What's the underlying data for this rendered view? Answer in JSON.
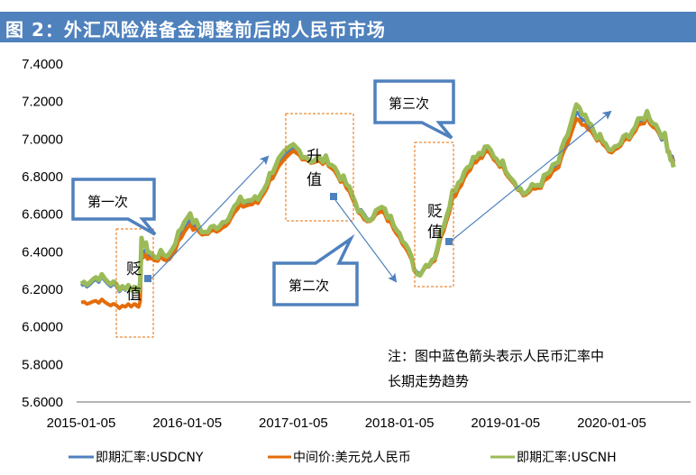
{
  "title": "图 2：外汇风险准备金调整前后的人民币市场",
  "colors": {
    "title_bg": "#4f81bd",
    "usdcny": "#4f81bd",
    "central_parity": "#e46c0a",
    "usdcnh": "#9bbb59",
    "axis": "#868686",
    "callout_border": "#4f81bd",
    "box_border": "#e46c0a",
    "trend_arrow": "#4f81bd"
  },
  "legend": {
    "items": [
      {
        "label": "即期汇率:USDCNY",
        "color": "#4f81bd"
      },
      {
        "label": "中间价:美元兑人民币",
        "color": "#e46c0a"
      },
      {
        "label": "即期汇率:USCNH",
        "color": "#9bbb59"
      }
    ]
  },
  "annotations": {
    "callouts": [
      {
        "label": "第一次"
      },
      {
        "label": "第二次"
      },
      {
        "label": "第三次"
      }
    ],
    "boxes": [
      {
        "line1": "贬",
        "line2": "值"
      },
      {
        "line1": "升",
        "line2": "值"
      },
      {
        "line1": "贬",
        "line2": "值"
      }
    ],
    "note_line1": "注：图中蓝色箭头表示人民币汇率中",
    "note_line2": "长期走势趋势"
  },
  "chart_data": {
    "type": "line",
    "title": "图 2：外汇风险准备金调整前后的人民币市场",
    "xlabel": "",
    "ylabel": "",
    "ylim": [
      5.6,
      7.4
    ],
    "yticks": [
      "7.4000",
      "7.2000",
      "7.0000",
      "6.8000",
      "6.6000",
      "6.4000",
      "6.2000",
      "6.0000",
      "5.8000",
      "5.6000"
    ],
    "xticks": [
      "2015-01-05",
      "2016-01-05",
      "2017-01-05",
      "2018-01-05",
      "2019-01-05",
      "2020-01-05"
    ],
    "grid": false,
    "legend_position": "bottom",
    "x": [
      "2015-01",
      "2015-03",
      "2015-05",
      "2015-07",
      "2015-08",
      "2015-09",
      "2015-11",
      "2016-01",
      "2016-03",
      "2016-05",
      "2016-07",
      "2016-09",
      "2016-11",
      "2017-01",
      "2017-03",
      "2017-05",
      "2017-07",
      "2017-09",
      "2017-11",
      "2018-01",
      "2018-03",
      "2018-05",
      "2018-07",
      "2018-09",
      "2018-11",
      "2019-01",
      "2019-03",
      "2019-05",
      "2019-07",
      "2019-09",
      "2019-11",
      "2020-01",
      "2020-03",
      "2020-05",
      "2020-07",
      "2020-08"
    ],
    "series": [
      {
        "name": "即期汇率:USDCNY",
        "values": [
          6.22,
          6.26,
          6.21,
          6.21,
          6.4,
          6.37,
          6.37,
          6.56,
          6.5,
          6.55,
          6.66,
          6.67,
          6.85,
          6.94,
          6.89,
          6.88,
          6.75,
          6.58,
          6.62,
          6.5,
          6.29,
          6.37,
          6.7,
          6.86,
          6.94,
          6.84,
          6.71,
          6.76,
          6.86,
          7.13,
          7.03,
          6.93,
          7.02,
          7.12,
          7.0,
          6.88
        ]
      },
      {
        "name": "中间价:美元兑人民币",
        "values": [
          6.13,
          6.14,
          6.11,
          6.12,
          6.38,
          6.36,
          6.36,
          6.54,
          6.49,
          6.53,
          6.64,
          6.66,
          6.83,
          6.93,
          6.88,
          6.87,
          6.74,
          6.56,
          6.61,
          6.49,
          6.28,
          6.36,
          6.68,
          6.85,
          6.93,
          6.83,
          6.7,
          6.75,
          6.85,
          7.1,
          7.02,
          6.92,
          7.01,
          7.11,
          7.0,
          6.87
        ]
      },
      {
        "name": "即期汇率:USCNH",
        "values": [
          6.23,
          6.27,
          6.22,
          6.21,
          6.45,
          6.38,
          6.39,
          6.6,
          6.5,
          6.56,
          6.67,
          6.68,
          6.87,
          6.96,
          6.89,
          6.89,
          6.76,
          6.57,
          6.63,
          6.52,
          6.28,
          6.38,
          6.72,
          6.88,
          6.95,
          6.85,
          6.71,
          6.77,
          6.88,
          7.17,
          7.04,
          6.93,
          7.03,
          7.14,
          7.01,
          6.85
        ]
      }
    ],
    "annotations": [
      {
        "text": "第一次",
        "type": "callout",
        "region": "2015-08 depreciation"
      },
      {
        "text": "第二次",
        "type": "callout",
        "region": "2017-09 to 2018-04"
      },
      {
        "text": "第三次",
        "type": "callout",
        "region": "2018-08 depreciation"
      },
      {
        "text": "贬值",
        "type": "box",
        "x_range": [
          "2015-06",
          "2015-12"
        ]
      },
      {
        "text": "升值",
        "type": "box",
        "x_range": [
          "2017-01",
          "2017-09"
        ]
      },
      {
        "text": "贬值",
        "type": "box",
        "x_range": [
          "2018-05",
          "2018-09"
        ]
      },
      {
        "text": "注：图中蓝色箭头表示人民币汇率中长期走势趋势",
        "type": "note"
      }
    ]
  }
}
